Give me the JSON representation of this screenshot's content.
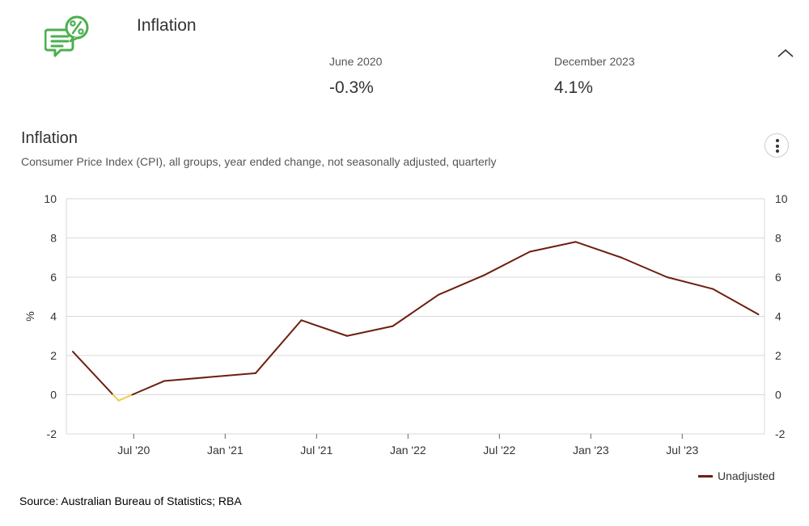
{
  "header": {
    "title": "Inflation",
    "icon": "percent-speech-bubble-icon",
    "icon_color": "#4caf50",
    "stats": [
      {
        "label": "June 2020",
        "value": "-0.3%"
      },
      {
        "label": "December 2023",
        "value": "4.1%"
      }
    ]
  },
  "chart_data": {
    "type": "line",
    "title": "Inflation",
    "subtitle": "Consumer Price Index (CPI), all groups, year ended change, not seasonally adjusted, quarterly",
    "ylabel": "%",
    "ylim": [
      -2,
      10
    ],
    "yticks": [
      "10",
      "8",
      "6",
      "4",
      "2",
      "0",
      "-2"
    ],
    "ytick_values": [
      10,
      8,
      6,
      4,
      2,
      0,
      -2
    ],
    "grid": true,
    "xlim": [
      "2020-03",
      "2023-12"
    ],
    "xticks": [
      {
        "label": "Jul '20",
        "t": 1.333
      },
      {
        "label": "Jan '21",
        "t": 3.333
      },
      {
        "label": "Jul '21",
        "t": 5.333
      },
      {
        "label": "Jan '22",
        "t": 7.333
      },
      {
        "label": "Jul '22",
        "t": 9.333
      },
      {
        "label": "Jan '23",
        "t": 11.333
      },
      {
        "label": "Jul '23",
        "t": 13.333
      }
    ],
    "x": [
      "Mar 2020",
      "Jun 2020",
      "Sep 2020",
      "Dec 2020",
      "Mar 2021",
      "Jun 2021",
      "Sep 2021",
      "Dec 2021",
      "Mar 2022",
      "Jun 2022",
      "Sep 2022",
      "Dec 2022",
      "Mar 2023",
      "Jun 2023",
      "Sep 2023",
      "Dec 2023"
    ],
    "series": [
      {
        "name": "Unadjusted",
        "color": "#6d1f0e",
        "negative_color": "#f0c94a",
        "values": [
          2.2,
          -0.3,
          0.7,
          0.9,
          1.1,
          3.8,
          3.0,
          3.5,
          5.1,
          6.1,
          7.3,
          7.8,
          7.0,
          6.0,
          5.4,
          4.1
        ]
      }
    ],
    "legend": "bottom-right",
    "source": "Source: Australian Bureau of Statistics; RBA"
  }
}
